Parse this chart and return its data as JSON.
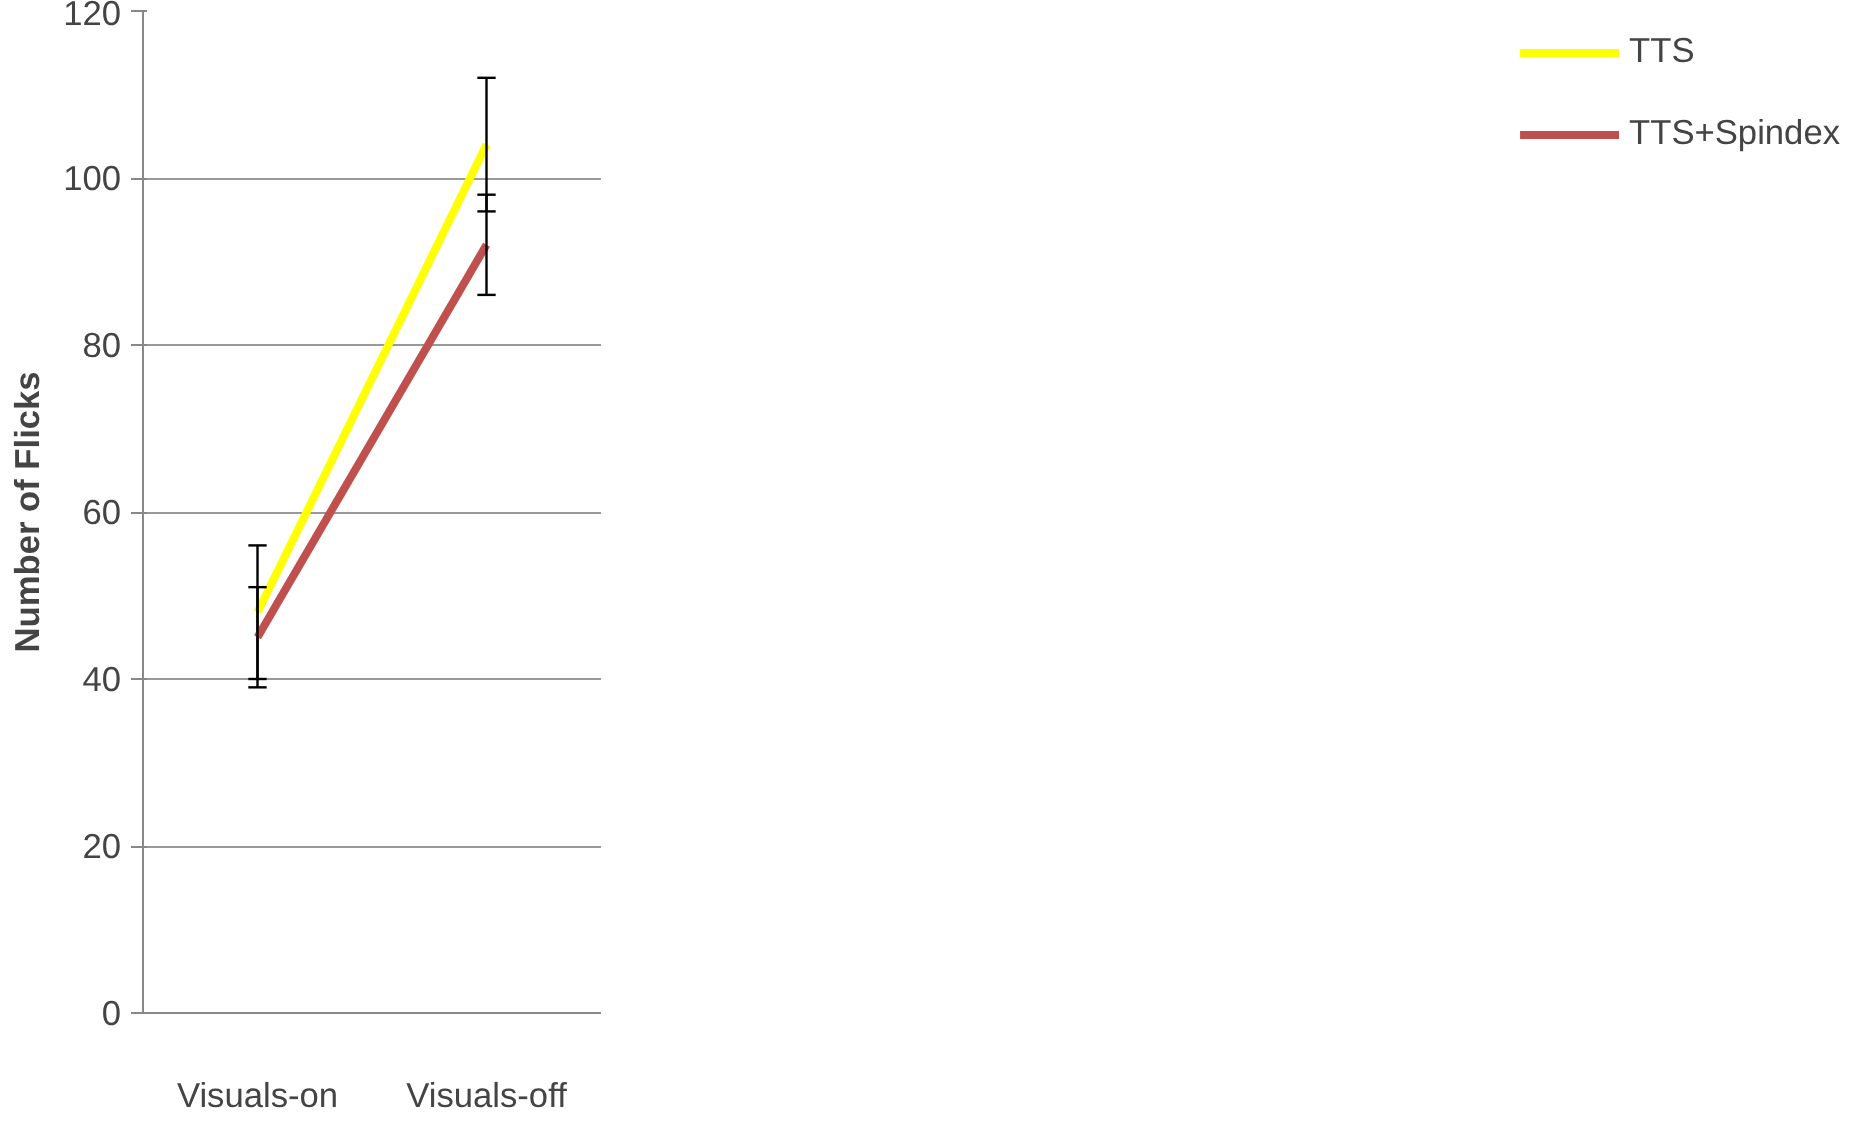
{
  "chart_data": {
    "type": "line",
    "ylabel": "Number of Flicks",
    "categories": [
      "Visuals-on",
      "Visuals-off"
    ],
    "series": [
      {
        "name": "TTS",
        "color": "#ffff00",
        "values": [
          48,
          104
        ],
        "errors": [
          8,
          8
        ]
      },
      {
        "name": "TTS+Spindex",
        "color": "#c0504d",
        "values": [
          45,
          92
        ],
        "errors": [
          6,
          6
        ]
      }
    ],
    "ylim": [
      0,
      120
    ],
    "yticks": [
      0,
      20,
      40,
      60,
      80,
      100,
      120
    ],
    "grid": "y",
    "legend": "right",
    "marker": "none",
    "line_style": "solid"
  }
}
